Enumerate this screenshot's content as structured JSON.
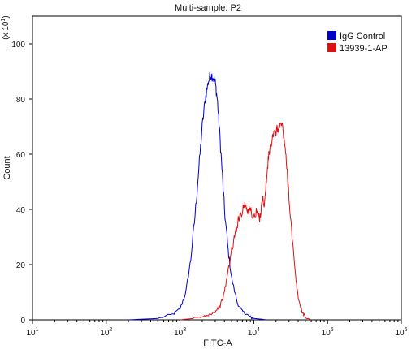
{
  "chart_data": {
    "type": "line",
    "title": "Multi-sample: P2",
    "xlabel": "FITC-A",
    "ylabel": "Count",
    "y_multiplier_label": "(x 10",
    "y_multiplier_exp": "1",
    "x_scale": "log",
    "xlim": [
      10,
      1000000
    ],
    "ylim": [
      0,
      110
    ],
    "x_ticks": [
      {
        "value": 10,
        "base": "10",
        "exp": "1"
      },
      {
        "value": 100,
        "base": "10",
        "exp": "2"
      },
      {
        "value": 1000,
        "base": "10",
        "exp": "3"
      },
      {
        "value": 10000,
        "base": "10",
        "exp": "4"
      },
      {
        "value": 100000,
        "base": "10",
        "exp": "5"
      },
      {
        "value": 1000000,
        "base": "10",
        "exp": "6"
      }
    ],
    "y_ticks": [
      0,
      20,
      40,
      60,
      80,
      100
    ],
    "legend_position": "top-right",
    "series": [
      {
        "name": "IgG Control",
        "color": "#0000cc",
        "x": [
          200,
          500,
          800,
          1000,
          1200,
          1400,
          1600,
          1800,
          2000,
          2200,
          2400,
          2600,
          2800,
          3000,
          3200,
          3400,
          3700,
          4000,
          4500,
          5000,
          6000,
          7000,
          8000,
          9000,
          10000,
          12000,
          15000
        ],
        "y": [
          0,
          0.5,
          2,
          4,
          10,
          22,
          38,
          55,
          70,
          80,
          86,
          89,
          88,
          86,
          80,
          70,
          55,
          40,
          25,
          15,
          6,
          3,
          2,
          1,
          0.5,
          0.3,
          0
        ]
      },
      {
        "name": "13939-1-AP",
        "color": "#dd1111",
        "x": [
          1000,
          1500,
          2000,
          2500,
          3000,
          3500,
          4000,
          4500,
          5000,
          5500,
          6000,
          7000,
          7500,
          8000,
          8500,
          9000,
          10000,
          11000,
          12000,
          13000,
          14000,
          15000,
          16000,
          18000,
          20000,
          22000,
          24000,
          26000,
          28000,
          30000,
          33000,
          37000,
          40000,
          45000,
          50000,
          60000
        ],
        "y": [
          0,
          0.5,
          1,
          2,
          3,
          5,
          10,
          18,
          25,
          30,
          35,
          40,
          42,
          41,
          39,
          40,
          37,
          39,
          36,
          44,
          42,
          52,
          60,
          66,
          68,
          70,
          71,
          65,
          55,
          45,
          30,
          15,
          8,
          3,
          1,
          0
        ]
      }
    ]
  }
}
